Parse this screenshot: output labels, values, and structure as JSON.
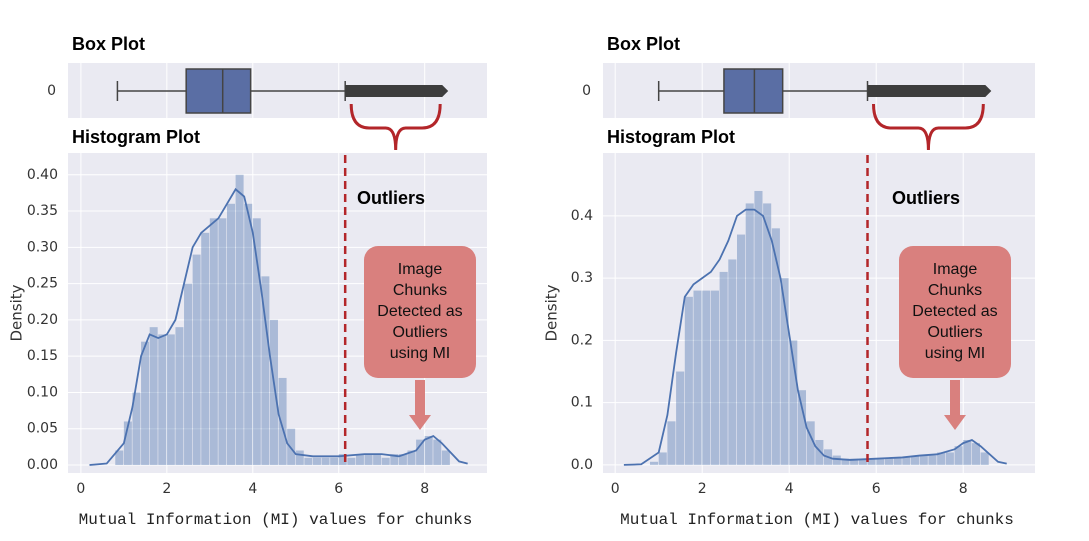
{
  "chart_data": [
    {
      "type": "histogram",
      "box_title": "Box Plot",
      "title": "Histogram Plot",
      "xlabel": "Mutual Information (MI) values for chunks",
      "ylabel": "Density",
      "box_ytick": "0",
      "box": {
        "whislo": 0.85,
        "q1": 2.45,
        "med": 3.3,
        "q3": 3.95,
        "whishi": 6.15,
        "outlier_max": 8.5
      },
      "threshold": 6.15,
      "annotation": "Outliers",
      "callout": [
        "Image",
        "Chunks",
        "Detected as",
        "Outliers",
        "using MI"
      ],
      "xlim": [
        -0.3,
        9.45
      ],
      "xticks": [
        0,
        2,
        4,
        6,
        8
      ],
      "ylim": [
        -0.011,
        0.43
      ],
      "yticks": [
        {
          "value": 0,
          "label": "0.00"
        },
        {
          "value": 0.05,
          "label": "0.05"
        },
        {
          "value": 0.1,
          "label": "0.10"
        },
        {
          "value": 0.15,
          "label": "0.15"
        },
        {
          "value": 0.2,
          "label": "0.20"
        },
        {
          "value": 0.25,
          "label": "0.25"
        },
        {
          "value": 0.3,
          "label": "0.30"
        },
        {
          "value": 0.35,
          "label": "0.35"
        },
        {
          "value": 0.4,
          "label": "0.40"
        }
      ],
      "color": "#4c72b0",
      "grid": true,
      "bins": [
        0.8,
        1.0,
        1.2,
        1.4,
        1.6,
        1.8,
        2.0,
        2.2,
        2.4,
        2.6,
        2.8,
        3.0,
        3.2,
        3.4,
        3.6,
        3.8,
        4.0,
        4.2,
        4.4,
        4.6,
        4.8,
        5.0,
        5.2,
        5.4,
        5.6,
        5.8,
        6.0,
        6.2,
        6.4,
        6.6,
        6.8,
        7.0,
        7.2,
        7.4,
        7.6,
        7.8,
        8.0,
        8.2,
        8.4,
        8.6
      ],
      "values": [
        0.02,
        0.06,
        0.1,
        0.17,
        0.19,
        0.18,
        0.18,
        0.19,
        0.25,
        0.29,
        0.32,
        0.34,
        0.34,
        0.36,
        0.4,
        0.36,
        0.34,
        0.26,
        0.2,
        0.12,
        0.05,
        0.02,
        0.01,
        0.01,
        0.01,
        0.01,
        0.015,
        0.01,
        0.015,
        0.015,
        0.015,
        0.01,
        0.015,
        0.015,
        0.02,
        0.035,
        0.04,
        0.035,
        0.02
      ],
      "kde": {
        "x": [
          0.2,
          0.6,
          1.0,
          1.2,
          1.4,
          1.6,
          1.8,
          2.0,
          2.2,
          2.4,
          2.6,
          2.8,
          3.0,
          3.2,
          3.4,
          3.6,
          3.8,
          4.0,
          4.2,
          4.4,
          4.6,
          4.8,
          5.0,
          5.4,
          6.0,
          6.6,
          7.0,
          7.4,
          7.8,
          8.0,
          8.2,
          8.4,
          8.8,
          9.0
        ],
        "values": [
          0,
          0.002,
          0.03,
          0.08,
          0.15,
          0.18,
          0.175,
          0.18,
          0.2,
          0.25,
          0.3,
          0.32,
          0.33,
          0.34,
          0.36,
          0.38,
          0.37,
          0.32,
          0.24,
          0.15,
          0.07,
          0.03,
          0.015,
          0.012,
          0.012,
          0.015,
          0.015,
          0.012,
          0.02,
          0.035,
          0.04,
          0.03,
          0.005,
          0.002
        ]
      }
    },
    {
      "type": "histogram",
      "box_title": "Box Plot",
      "title": "Histogram Plot",
      "xlabel": "Mutual Information (MI) values for chunks",
      "ylabel": "Density",
      "box_ytick": "0",
      "box": {
        "whislo": 1.0,
        "q1": 2.5,
        "med": 3.2,
        "q3": 3.85,
        "whishi": 5.8,
        "outlier_max": 8.6
      },
      "threshold": 5.8,
      "annotation": "Outliers",
      "callout": [
        "Image",
        "Chunks",
        "Detected as",
        "Outliers",
        "using MI"
      ],
      "xlim": [
        -0.28,
        9.65
      ],
      "xticks": [
        0,
        2,
        4,
        6,
        8
      ],
      "ylim": [
        -0.013,
        0.501
      ],
      "yticks": [
        {
          "value": 0,
          "label": "0.0"
        },
        {
          "value": 0.1,
          "label": "0.1"
        },
        {
          "value": 0.2,
          "label": "0.2"
        },
        {
          "value": 0.3,
          "label": "0.3"
        },
        {
          "value": 0.4,
          "label": "0.4"
        }
      ],
      "color": "#4c72b0",
      "grid": true,
      "bins": [
        0.8,
        1.0,
        1.2,
        1.4,
        1.6,
        1.8,
        2.0,
        2.2,
        2.4,
        2.6,
        2.8,
        3.0,
        3.2,
        3.4,
        3.6,
        3.8,
        4.0,
        4.2,
        4.4,
        4.6,
        4.8,
        5.0,
        5.2,
        5.4,
        5.6,
        5.8,
        6.0,
        6.2,
        6.4,
        6.6,
        6.8,
        7.0,
        7.2,
        7.4,
        7.6,
        7.8,
        8.0,
        8.2,
        8.4,
        8.6
      ],
      "values": [
        0.005,
        0.02,
        0.07,
        0.15,
        0.27,
        0.28,
        0.28,
        0.28,
        0.31,
        0.33,
        0.37,
        0.42,
        0.44,
        0.42,
        0.38,
        0.3,
        0.2,
        0.12,
        0.07,
        0.04,
        0.025,
        0.015,
        0.01,
        0.01,
        0.01,
        0.01,
        0.01,
        0.01,
        0.012,
        0.012,
        0.015,
        0.015,
        0.015,
        0.02,
        0.02,
        0.03,
        0.04,
        0.035,
        0.02
      ],
      "kde": {
        "x": [
          0.2,
          0.6,
          1.0,
          1.2,
          1.4,
          1.6,
          1.8,
          2.0,
          2.2,
          2.4,
          2.6,
          2.8,
          3.0,
          3.2,
          3.4,
          3.6,
          3.8,
          4.0,
          4.2,
          4.4,
          4.6,
          4.8,
          5.0,
          5.4,
          6.0,
          6.6,
          7.0,
          7.4,
          7.8,
          8.0,
          8.2,
          8.4,
          8.8,
          9.0
        ],
        "values": [
          0,
          0.001,
          0.02,
          0.08,
          0.18,
          0.27,
          0.29,
          0.3,
          0.31,
          0.33,
          0.36,
          0.4,
          0.41,
          0.41,
          0.4,
          0.36,
          0.3,
          0.21,
          0.12,
          0.06,
          0.03,
          0.015,
          0.01,
          0.008,
          0.01,
          0.012,
          0.015,
          0.017,
          0.025,
          0.035,
          0.04,
          0.03,
          0.005,
          0.002
        ]
      }
    }
  ]
}
